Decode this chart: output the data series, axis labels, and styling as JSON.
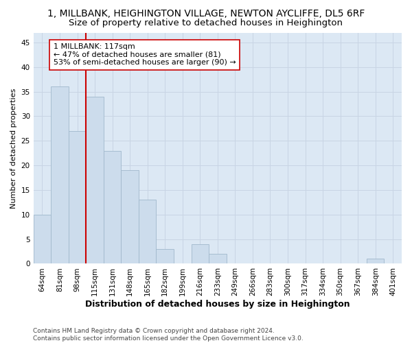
{
  "title": "1, MILLBANK, HEIGHINGTON VILLAGE, NEWTON AYCLIFFE, DL5 6RF",
  "subtitle": "Size of property relative to detached houses in Heighington",
  "xlabel": "Distribution of detached houses by size in Heighington",
  "ylabel": "Number of detached properties",
  "categories": [
    "64sqm",
    "81sqm",
    "98sqm",
    "115sqm",
    "131sqm",
    "148sqm",
    "165sqm",
    "182sqm",
    "199sqm",
    "216sqm",
    "233sqm",
    "249sqm",
    "266sqm",
    "283sqm",
    "300sqm",
    "317sqm",
    "334sqm",
    "350sqm",
    "367sqm",
    "384sqm",
    "401sqm"
  ],
  "values": [
    10,
    36,
    27,
    34,
    23,
    19,
    13,
    3,
    0,
    4,
    2,
    0,
    0,
    0,
    0,
    0,
    0,
    0,
    0,
    1,
    0
  ],
  "bar_color": "#ccdcec",
  "bar_edge_color": "#a0b8cc",
  "vline_color": "#cc0000",
  "annotation_text": "1 MILLBANK: 117sqm\n← 47% of detached houses are smaller (81)\n53% of semi-detached houses are larger (90) →",
  "annotation_box_facecolor": "#ffffff",
  "annotation_box_edgecolor": "#cc0000",
  "ylim": [
    0,
    47
  ],
  "yticks": [
    0,
    5,
    10,
    15,
    20,
    25,
    30,
    35,
    40,
    45
  ],
  "grid_color": "#c8d4e4",
  "background_color": "#dce8f4",
  "footer": "Contains HM Land Registry data © Crown copyright and database right 2024.\nContains public sector information licensed under the Open Government Licence v3.0.",
  "title_fontsize": 10,
  "subtitle_fontsize": 9.5,
  "xlabel_fontsize": 9,
  "ylabel_fontsize": 8,
  "tick_fontsize": 7.5,
  "annotation_fontsize": 8,
  "footer_fontsize": 6.5
}
